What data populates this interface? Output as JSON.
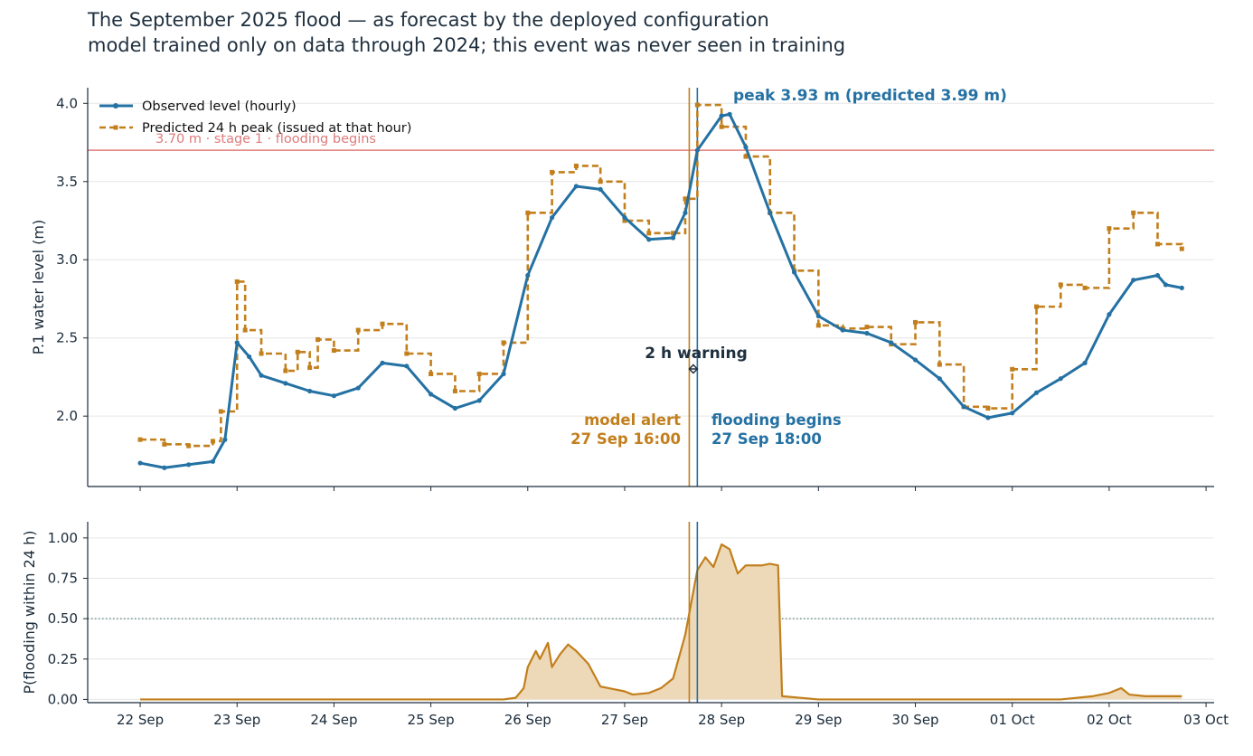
{
  "title_line1": "The September 2025 flood — as forecast by the deployed configuration",
  "title_line2": "model trained only on data through 2024; this event was never seen in training",
  "colors": {
    "observed": "#2471a3",
    "predicted": "#c27f1c",
    "threshold": "#e07b7b",
    "axis_text": "#1a2b3a",
    "grid": "#e6e6e6",
    "fill": "#edd9b8",
    "dotted": "#2e5f5f"
  },
  "chart_data": [
    {
      "type": "line",
      "ylabel": "P.1 water level (m)",
      "ylim": [
        1.55,
        4.1
      ],
      "yticks": [
        {
          "value": 2.0,
          "label": "2.0"
        },
        {
          "value": 2.5,
          "label": "2.5"
        },
        {
          "value": 3.0,
          "label": "3.0"
        },
        {
          "value": 3.5,
          "label": "3.5"
        },
        {
          "value": 4.0,
          "label": "4.0"
        }
      ],
      "xlim": [
        "2025-09-21 11:00",
        "2025-10-03 02:00"
      ],
      "legend_position": "top-left",
      "threshold": {
        "value": 3.7,
        "label": "3.70 m · stage 1 · flooding begins"
      },
      "series": [
        {
          "name": "Observed level (hourly)",
          "style": "solid line with dot markers",
          "points": [
            [
              "2025-09-22 00:00",
              1.7
            ],
            [
              "2025-09-22 06:00",
              1.67
            ],
            [
              "2025-09-22 12:00",
              1.69
            ],
            [
              "2025-09-22 18:00",
              1.71
            ],
            [
              "2025-09-22 21:00",
              1.85
            ],
            [
              "2025-09-23 00:00",
              2.47
            ],
            [
              "2025-09-23 03:00",
              2.38
            ],
            [
              "2025-09-23 06:00",
              2.26
            ],
            [
              "2025-09-23 12:00",
              2.21
            ],
            [
              "2025-09-23 18:00",
              2.16
            ],
            [
              "2025-09-24 00:00",
              2.13
            ],
            [
              "2025-09-24 06:00",
              2.18
            ],
            [
              "2025-09-24 12:00",
              2.34
            ],
            [
              "2025-09-24 18:00",
              2.32
            ],
            [
              "2025-09-25 00:00",
              2.14
            ],
            [
              "2025-09-25 06:00",
              2.05
            ],
            [
              "2025-09-25 12:00",
              2.1
            ],
            [
              "2025-09-25 18:00",
              2.27
            ],
            [
              "2025-09-26 00:00",
              2.9
            ],
            [
              "2025-09-26 06:00",
              3.27
            ],
            [
              "2025-09-26 12:00",
              3.47
            ],
            [
              "2025-09-26 18:00",
              3.45
            ],
            [
              "2025-09-27 00:00",
              3.27
            ],
            [
              "2025-09-27 06:00",
              3.13
            ],
            [
              "2025-09-27 12:00",
              3.14
            ],
            [
              "2025-09-27 15:00",
              3.3
            ],
            [
              "2025-09-27 18:00",
              3.7
            ],
            [
              "2025-09-28 00:00",
              3.92
            ],
            [
              "2025-09-28 02:00",
              3.93
            ],
            [
              "2025-09-28 06:00",
              3.72
            ],
            [
              "2025-09-28 12:00",
              3.3
            ],
            [
              "2025-09-28 18:00",
              2.92
            ],
            [
              "2025-09-29 00:00",
              2.64
            ],
            [
              "2025-09-29 06:00",
              2.55
            ],
            [
              "2025-09-29 12:00",
              2.53
            ],
            [
              "2025-09-29 18:00",
              2.47
            ],
            [
              "2025-09-30 00:00",
              2.36
            ],
            [
              "2025-09-30 06:00",
              2.24
            ],
            [
              "2025-09-30 12:00",
              2.06
            ],
            [
              "2025-09-30 18:00",
              1.99
            ],
            [
              "2025-10-01 00:00",
              2.02
            ],
            [
              "2025-10-01 06:00",
              2.15
            ],
            [
              "2025-10-01 12:00",
              2.24
            ],
            [
              "2025-10-01 18:00",
              2.34
            ],
            [
              "2025-10-02 00:00",
              2.65
            ],
            [
              "2025-10-02 06:00",
              2.87
            ],
            [
              "2025-10-02 12:00",
              2.9
            ],
            [
              "2025-10-02 14:00",
              2.84
            ],
            [
              "2025-10-02 18:00",
              2.82
            ]
          ]
        },
        {
          "name": "Predicted 24 h peak (issued at that hour)",
          "style": "dashed step line with square markers",
          "points": [
            [
              "2025-09-22 00:00",
              1.85
            ],
            [
              "2025-09-22 06:00",
              1.82
            ],
            [
              "2025-09-22 12:00",
              1.81
            ],
            [
              "2025-09-22 18:00",
              1.84
            ],
            [
              "2025-09-22 20:00",
              2.03
            ],
            [
              "2025-09-23 00:00",
              2.86
            ],
            [
              "2025-09-23 02:00",
              2.55
            ],
            [
              "2025-09-23 06:00",
              2.4
            ],
            [
              "2025-09-23 12:00",
              2.29
            ],
            [
              "2025-09-23 15:00",
              2.41
            ],
            [
              "2025-09-23 18:00",
              2.31
            ],
            [
              "2025-09-23 20:00",
              2.49
            ],
            [
              "2025-09-24 00:00",
              2.42
            ],
            [
              "2025-09-24 06:00",
              2.55
            ],
            [
              "2025-09-24 12:00",
              2.59
            ],
            [
              "2025-09-24 18:00",
              2.4
            ],
            [
              "2025-09-25 00:00",
              2.27
            ],
            [
              "2025-09-25 06:00",
              2.16
            ],
            [
              "2025-09-25 12:00",
              2.27
            ],
            [
              "2025-09-25 18:00",
              2.47
            ],
            [
              "2025-09-26 00:00",
              3.3
            ],
            [
              "2025-09-26 06:00",
              3.56
            ],
            [
              "2025-09-26 12:00",
              3.6
            ],
            [
              "2025-09-26 18:00",
              3.5
            ],
            [
              "2025-09-27 00:00",
              3.25
            ],
            [
              "2025-09-27 06:00",
              3.17
            ],
            [
              "2025-09-27 12:00",
              3.17
            ],
            [
              "2025-09-27 15:00",
              3.39
            ],
            [
              "2025-09-27 18:00",
              3.99
            ],
            [
              "2025-09-28 00:00",
              3.85
            ],
            [
              "2025-09-28 06:00",
              3.66
            ],
            [
              "2025-09-28 12:00",
              3.3
            ],
            [
              "2025-09-28 18:00",
              2.93
            ],
            [
              "2025-09-29 00:00",
              2.58
            ],
            [
              "2025-09-29 06:00",
              2.56
            ],
            [
              "2025-09-29 12:00",
              2.57
            ],
            [
              "2025-09-29 18:00",
              2.46
            ],
            [
              "2025-09-30 00:00",
              2.6
            ],
            [
              "2025-09-30 06:00",
              2.33
            ],
            [
              "2025-09-30 12:00",
              2.06
            ],
            [
              "2025-09-30 18:00",
              2.05
            ],
            [
              "2025-10-01 00:00",
              2.3
            ],
            [
              "2025-10-01 06:00",
              2.7
            ],
            [
              "2025-10-01 12:00",
              2.84
            ],
            [
              "2025-10-01 18:00",
              2.82
            ],
            [
              "2025-10-02 00:00",
              3.2
            ],
            [
              "2025-10-02 06:00",
              3.3
            ],
            [
              "2025-10-02 12:00",
              3.1
            ],
            [
              "2025-10-02 18:00",
              3.07
            ]
          ]
        }
      ],
      "annotations": {
        "peak": "peak 3.93 m (predicted 3.99 m)",
        "warning": "2 h warning",
        "alert_title": "model alert",
        "alert_time": "27 Sep 16:00",
        "flood_title": "flooding begins",
        "flood_time": "27 Sep 18:00"
      },
      "events": {
        "alert": "2025-09-27 16:00",
        "flooding": "2025-09-27 18:00"
      }
    },
    {
      "type": "area",
      "ylabel": "P(flooding within 24 h)",
      "ylim": [
        -0.02,
        1.1
      ],
      "yticks": [
        {
          "value": 0.0,
          "label": "0.00"
        },
        {
          "value": 0.25,
          "label": "0.25"
        },
        {
          "value": 0.5,
          "label": "0.50"
        },
        {
          "value": 0.75,
          "label": "0.75"
        },
        {
          "value": 1.0,
          "label": "1.00"
        }
      ],
      "reference_line": 0.5,
      "x_tick_labels": [
        "22 Sep",
        "23 Sep",
        "24 Sep",
        "25 Sep",
        "26 Sep",
        "27 Sep",
        "28 Sep",
        "29 Sep",
        "30 Sep",
        "01 Oct",
        "02 Oct",
        "03 Oct"
      ],
      "x_tick_dates": [
        "2025-09-22",
        "2025-09-23",
        "2025-09-24",
        "2025-09-25",
        "2025-09-26",
        "2025-09-27",
        "2025-09-28",
        "2025-09-29",
        "2025-09-30",
        "2025-10-01",
        "2025-10-02",
        "2025-10-03"
      ],
      "points": [
        [
          "2025-09-22 00:00",
          0.0
        ],
        [
          "2025-09-25 18:00",
          0.0
        ],
        [
          "2025-09-25 21:00",
          0.01
        ],
        [
          "2025-09-25 23:00",
          0.07
        ],
        [
          "2025-09-26 00:00",
          0.2
        ],
        [
          "2025-09-26 02:00",
          0.3
        ],
        [
          "2025-09-26 03:00",
          0.25
        ],
        [
          "2025-09-26 05:00",
          0.35
        ],
        [
          "2025-09-26 06:00",
          0.2
        ],
        [
          "2025-09-26 08:00",
          0.28
        ],
        [
          "2025-09-26 10:00",
          0.34
        ],
        [
          "2025-09-26 12:00",
          0.3
        ],
        [
          "2025-09-26 15:00",
          0.22
        ],
        [
          "2025-09-26 18:00",
          0.08
        ],
        [
          "2025-09-27 00:00",
          0.05
        ],
        [
          "2025-09-27 02:00",
          0.03
        ],
        [
          "2025-09-27 06:00",
          0.04
        ],
        [
          "2025-09-27 09:00",
          0.07
        ],
        [
          "2025-09-27 12:00",
          0.13
        ],
        [
          "2025-09-27 15:00",
          0.4
        ],
        [
          "2025-09-27 18:00",
          0.8
        ],
        [
          "2025-09-27 20:00",
          0.88
        ],
        [
          "2025-09-27 22:00",
          0.82
        ],
        [
          "2025-09-28 00:00",
          0.96
        ],
        [
          "2025-09-28 02:00",
          0.93
        ],
        [
          "2025-09-28 04:00",
          0.78
        ],
        [
          "2025-09-28 06:00",
          0.83
        ],
        [
          "2025-09-28 10:00",
          0.83
        ],
        [
          "2025-09-28 12:00",
          0.84
        ],
        [
          "2025-09-28 14:00",
          0.83
        ],
        [
          "2025-09-28 15:00",
          0.02
        ],
        [
          "2025-09-29 00:00",
          0.0
        ],
        [
          "2025-10-01 12:00",
          0.0
        ],
        [
          "2025-10-01 20:00",
          0.02
        ],
        [
          "2025-10-02 00:00",
          0.04
        ],
        [
          "2025-10-02 03:00",
          0.07
        ],
        [
          "2025-10-02 05:00",
          0.03
        ],
        [
          "2025-10-02 09:00",
          0.02
        ],
        [
          "2025-10-02 18:00",
          0.02
        ]
      ]
    }
  ]
}
